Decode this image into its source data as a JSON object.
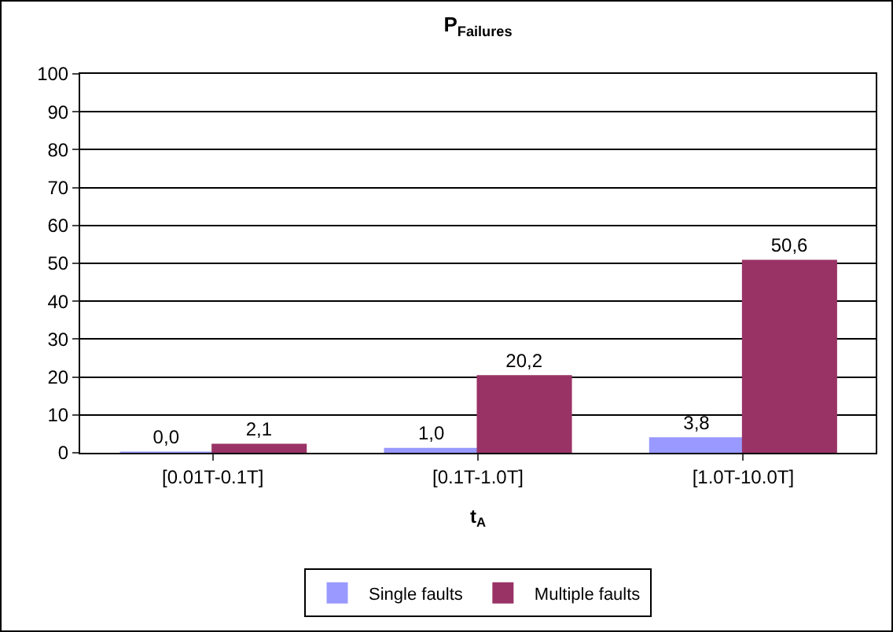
{
  "chart_data": {
    "type": "bar",
    "title": "P$_{Failures}$",
    "xlabel": "t$_{A}$",
    "categories": [
      "[0.01T-0.1T]",
      "[0.1T-1.0T]",
      "[1.0T-10.0T]"
    ],
    "series": [
      {
        "name": "Single faults",
        "color": "#9999ff",
        "values": [
          0.0,
          1.0,
          3.8
        ],
        "value_labels": [
          "0,0",
          "1,0",
          "3,8"
        ]
      },
      {
        "name": "Multiple faults",
        "color": "#993366",
        "values": [
          2.1,
          20.2,
          50.6
        ],
        "value_labels": [
          "2,1",
          "20,2",
          "50,6"
        ]
      }
    ],
    "ylim": [
      0,
      100
    ],
    "yticks": [
      0,
      10,
      20,
      30,
      40,
      50,
      60,
      70,
      80,
      90,
      100
    ],
    "grid": true,
    "legend": "bottom"
  }
}
